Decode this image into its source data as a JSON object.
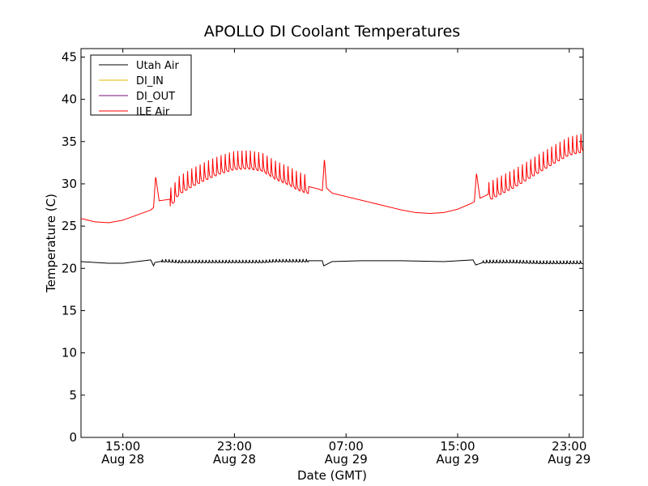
{
  "chart_data": {
    "type": "line",
    "title": "APOLLO DI Coolant Temperatures",
    "xlabel": "Date (GMT)",
    "ylabel": "Temperature (C)",
    "xlim": [
      -3.0,
      33.0
    ],
    "ylim": [
      0,
      46
    ],
    "y_ticks": [
      0,
      5,
      10,
      15,
      20,
      25,
      30,
      35,
      40,
      45
    ],
    "x_ticks": [
      {
        "at": 0,
        "time": "15:00",
        "date": "Aug 28"
      },
      {
        "at": 8,
        "time": "23:00",
        "date": "Aug 28"
      },
      {
        "at": 16,
        "time": "07:00",
        "date": "Aug 29"
      },
      {
        "at": 24,
        "time": "15:00",
        "date": "Aug 29"
      },
      {
        "at": 32,
        "time": "23:00",
        "date": "Aug 29"
      }
    ],
    "x_units": "hours since Aug 28 15:00 GMT",
    "legend_position": "top-left",
    "series": [
      {
        "name": "Utah Air",
        "color": "#000000",
        "x": [
          -3.0,
          -2.0,
          -1.0,
          0.0,
          1.0,
          2.0,
          2.2,
          2.3,
          3.0,
          4.0,
          5.0,
          6.0,
          7.0,
          8.0,
          9.0,
          10.0,
          11.0,
          14.3,
          14.4,
          15.0,
          17.0,
          20.0,
          23.0,
          25.1,
          25.3,
          26.0,
          28.0,
          30.0,
          32.0,
          33.0
        ],
        "values": [
          20.8,
          20.7,
          20.6,
          20.6,
          20.8,
          21.0,
          20.3,
          20.7,
          20.9,
          20.8,
          20.8,
          20.8,
          20.8,
          20.8,
          20.8,
          20.8,
          20.9,
          20.9,
          20.3,
          20.8,
          20.9,
          20.9,
          20.8,
          21.0,
          20.4,
          20.8,
          20.8,
          20.7,
          20.7,
          20.7
        ]
      },
      {
        "name": "DI_IN",
        "color": "#e6b800",
        "x": [],
        "values": []
      },
      {
        "name": "DI_OUT",
        "color": "#7a0f7a",
        "x": [],
        "values": []
      },
      {
        "name": "ILE Air",
        "color": "#ff0000",
        "x": [
          -3.0,
          -2.0,
          -1.0,
          0.0,
          1.0,
          2.0,
          2.2,
          2.35,
          2.6,
          3.5,
          4.0,
          5.0,
          6.0,
          7.0,
          8.0,
          9.0,
          10.0,
          11.0,
          12.0,
          12.5,
          13.0,
          14.0,
          14.3,
          14.45,
          14.6,
          15.0,
          16.0,
          17.0,
          18.0,
          19.0,
          20.0,
          21.0,
          22.0,
          23.0,
          24.0,
          25.0,
          25.2,
          25.35,
          25.6,
          26.0,
          27.0,
          28.0,
          29.0,
          30.0,
          31.0,
          32.0,
          33.0
        ],
        "values": [
          25.9,
          25.5,
          25.4,
          25.7,
          26.3,
          26.9,
          27.2,
          30.9,
          28.0,
          28.2,
          29.5,
          30.5,
          31.3,
          32.0,
          32.5,
          32.6,
          32.3,
          31.3,
          30.6,
          30.1,
          29.8,
          29.4,
          29.2,
          33.0,
          29.5,
          28.9,
          28.5,
          28.1,
          27.7,
          27.3,
          26.9,
          26.6,
          26.5,
          26.6,
          27.0,
          27.7,
          27.9,
          31.3,
          28.3,
          28.6,
          29.5,
          30.3,
          31.3,
          32.3,
          33.3,
          34.2,
          34.6
        ]
      }
    ],
    "oscillation": {
      "Utah Air": [
        {
          "start": 2.8,
          "end": 13.3,
          "period": 0.24,
          "amp": 0.4
        },
        {
          "start": 25.8,
          "end": 33.0,
          "period": 0.24,
          "amp": 0.45
        }
      ],
      "ILE Air": [
        {
          "start": 3.4,
          "end": 13.3,
          "period": 0.3,
          "amp": 2.4
        },
        {
          "start": 26.2,
          "end": 33.0,
          "period": 0.3,
          "amp": 2.4
        }
      ]
    }
  }
}
